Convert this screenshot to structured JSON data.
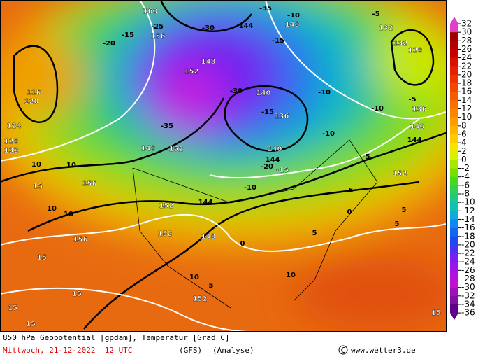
{
  "map": {
    "labels": [
      "160",
      "-25",
      "-30",
      "144",
      "-35",
      "-10",
      "148",
      "-5",
      "132",
      "132",
      "128",
      "156",
      "-15",
      "-20",
      "-15",
      "148",
      "152",
      "-30",
      "140",
      "-10",
      "-5",
      "-10",
      "136",
      "116",
      "120",
      "124",
      "128",
      "132",
      "-15",
      "136",
      "-35",
      "-10",
      "140",
      "144",
      "148",
      "152",
      "140",
      "-5",
      "144",
      "-20",
      "-15",
      "152",
      "10",
      "10",
      "156",
      "15",
      "-5",
      "-10",
      "144",
      "10",
      "10",
      "152",
      "0",
      "5",
      "5",
      "156",
      "15",
      "152",
      "148",
      "0",
      "5",
      "10",
      "10",
      "5",
      "15",
      "152",
      "15",
      "15",
      "15"
    ]
  },
  "colorbar": {
    "labels": [
      32,
      30,
      28,
      26,
      24,
      22,
      20,
      18,
      16,
      14,
      12,
      10,
      8,
      6,
      4,
      2,
      0,
      -2,
      -4,
      -6,
      -8,
      -10,
      -12,
      -14,
      -16,
      -18,
      -20,
      -22,
      -24,
      -26,
      -28,
      -30,
      -32,
      -34,
      -36
    ],
    "colors": [
      "#e040c8",
      "#a00000",
      "#b40000",
      "#c80000",
      "#d81000",
      "#e42000",
      "#ec3400",
      "#f04800",
      "#f45c00",
      "#f87000",
      "#fc8400",
      "#fc9c00",
      "#fcb400",
      "#fccc00",
      "#f8e400",
      "#d8f000",
      "#a8e800",
      "#78e000",
      "#48d820",
      "#30d050",
      "#20c880",
      "#10c0b0",
      "#10a8e0",
      "#1088f0",
      "#1068f0",
      "#2048f0",
      "#5030f0",
      "#7820f0",
      "#9818e8",
      "#b010e0",
      "#c010d0",
      "#a010b8",
      "#8010a0",
      "#600088"
    ]
  },
  "footer": {
    "title": "850 hPa Geopotential [gpdam], Temperatur [Grad C]",
    "date": "Mittwoch, 21-12-2022  12 UTC",
    "model": "(GFS)",
    "run": "(Analyse)",
    "credit": "www.wetter3.de"
  }
}
